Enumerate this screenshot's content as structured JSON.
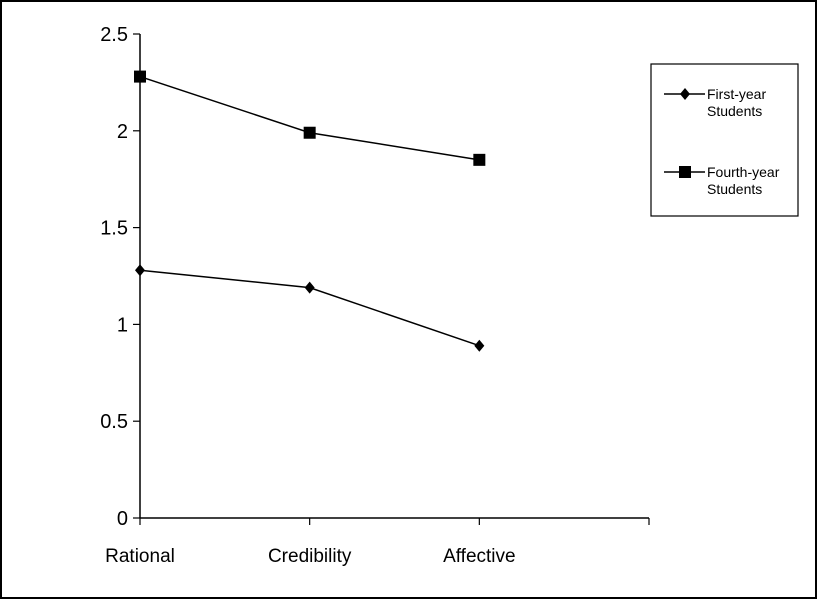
{
  "chart_data": {
    "type": "line",
    "categories": [
      "Rational",
      "Credibility",
      "Affective"
    ],
    "series": [
      {
        "name": "First-year Students",
        "name_lines": [
          "First-year",
          "Students"
        ],
        "marker": "diamond",
        "values": [
          1.28,
          1.19,
          0.89
        ]
      },
      {
        "name": "Fourth-year Students",
        "name_lines": [
          "Fourth-year",
          "Students"
        ],
        "marker": "square",
        "values": [
          2.28,
          1.99,
          1.85
        ]
      }
    ],
    "ylim": [
      0,
      2.5
    ],
    "yticks": [
      "0",
      "0.5",
      "1",
      "1.5",
      "2",
      "2.5"
    ],
    "x_slots": 3,
    "grid": false,
    "legend_position": "top-right",
    "colors": {
      "line": "#000000",
      "background": "#ffffff"
    }
  }
}
